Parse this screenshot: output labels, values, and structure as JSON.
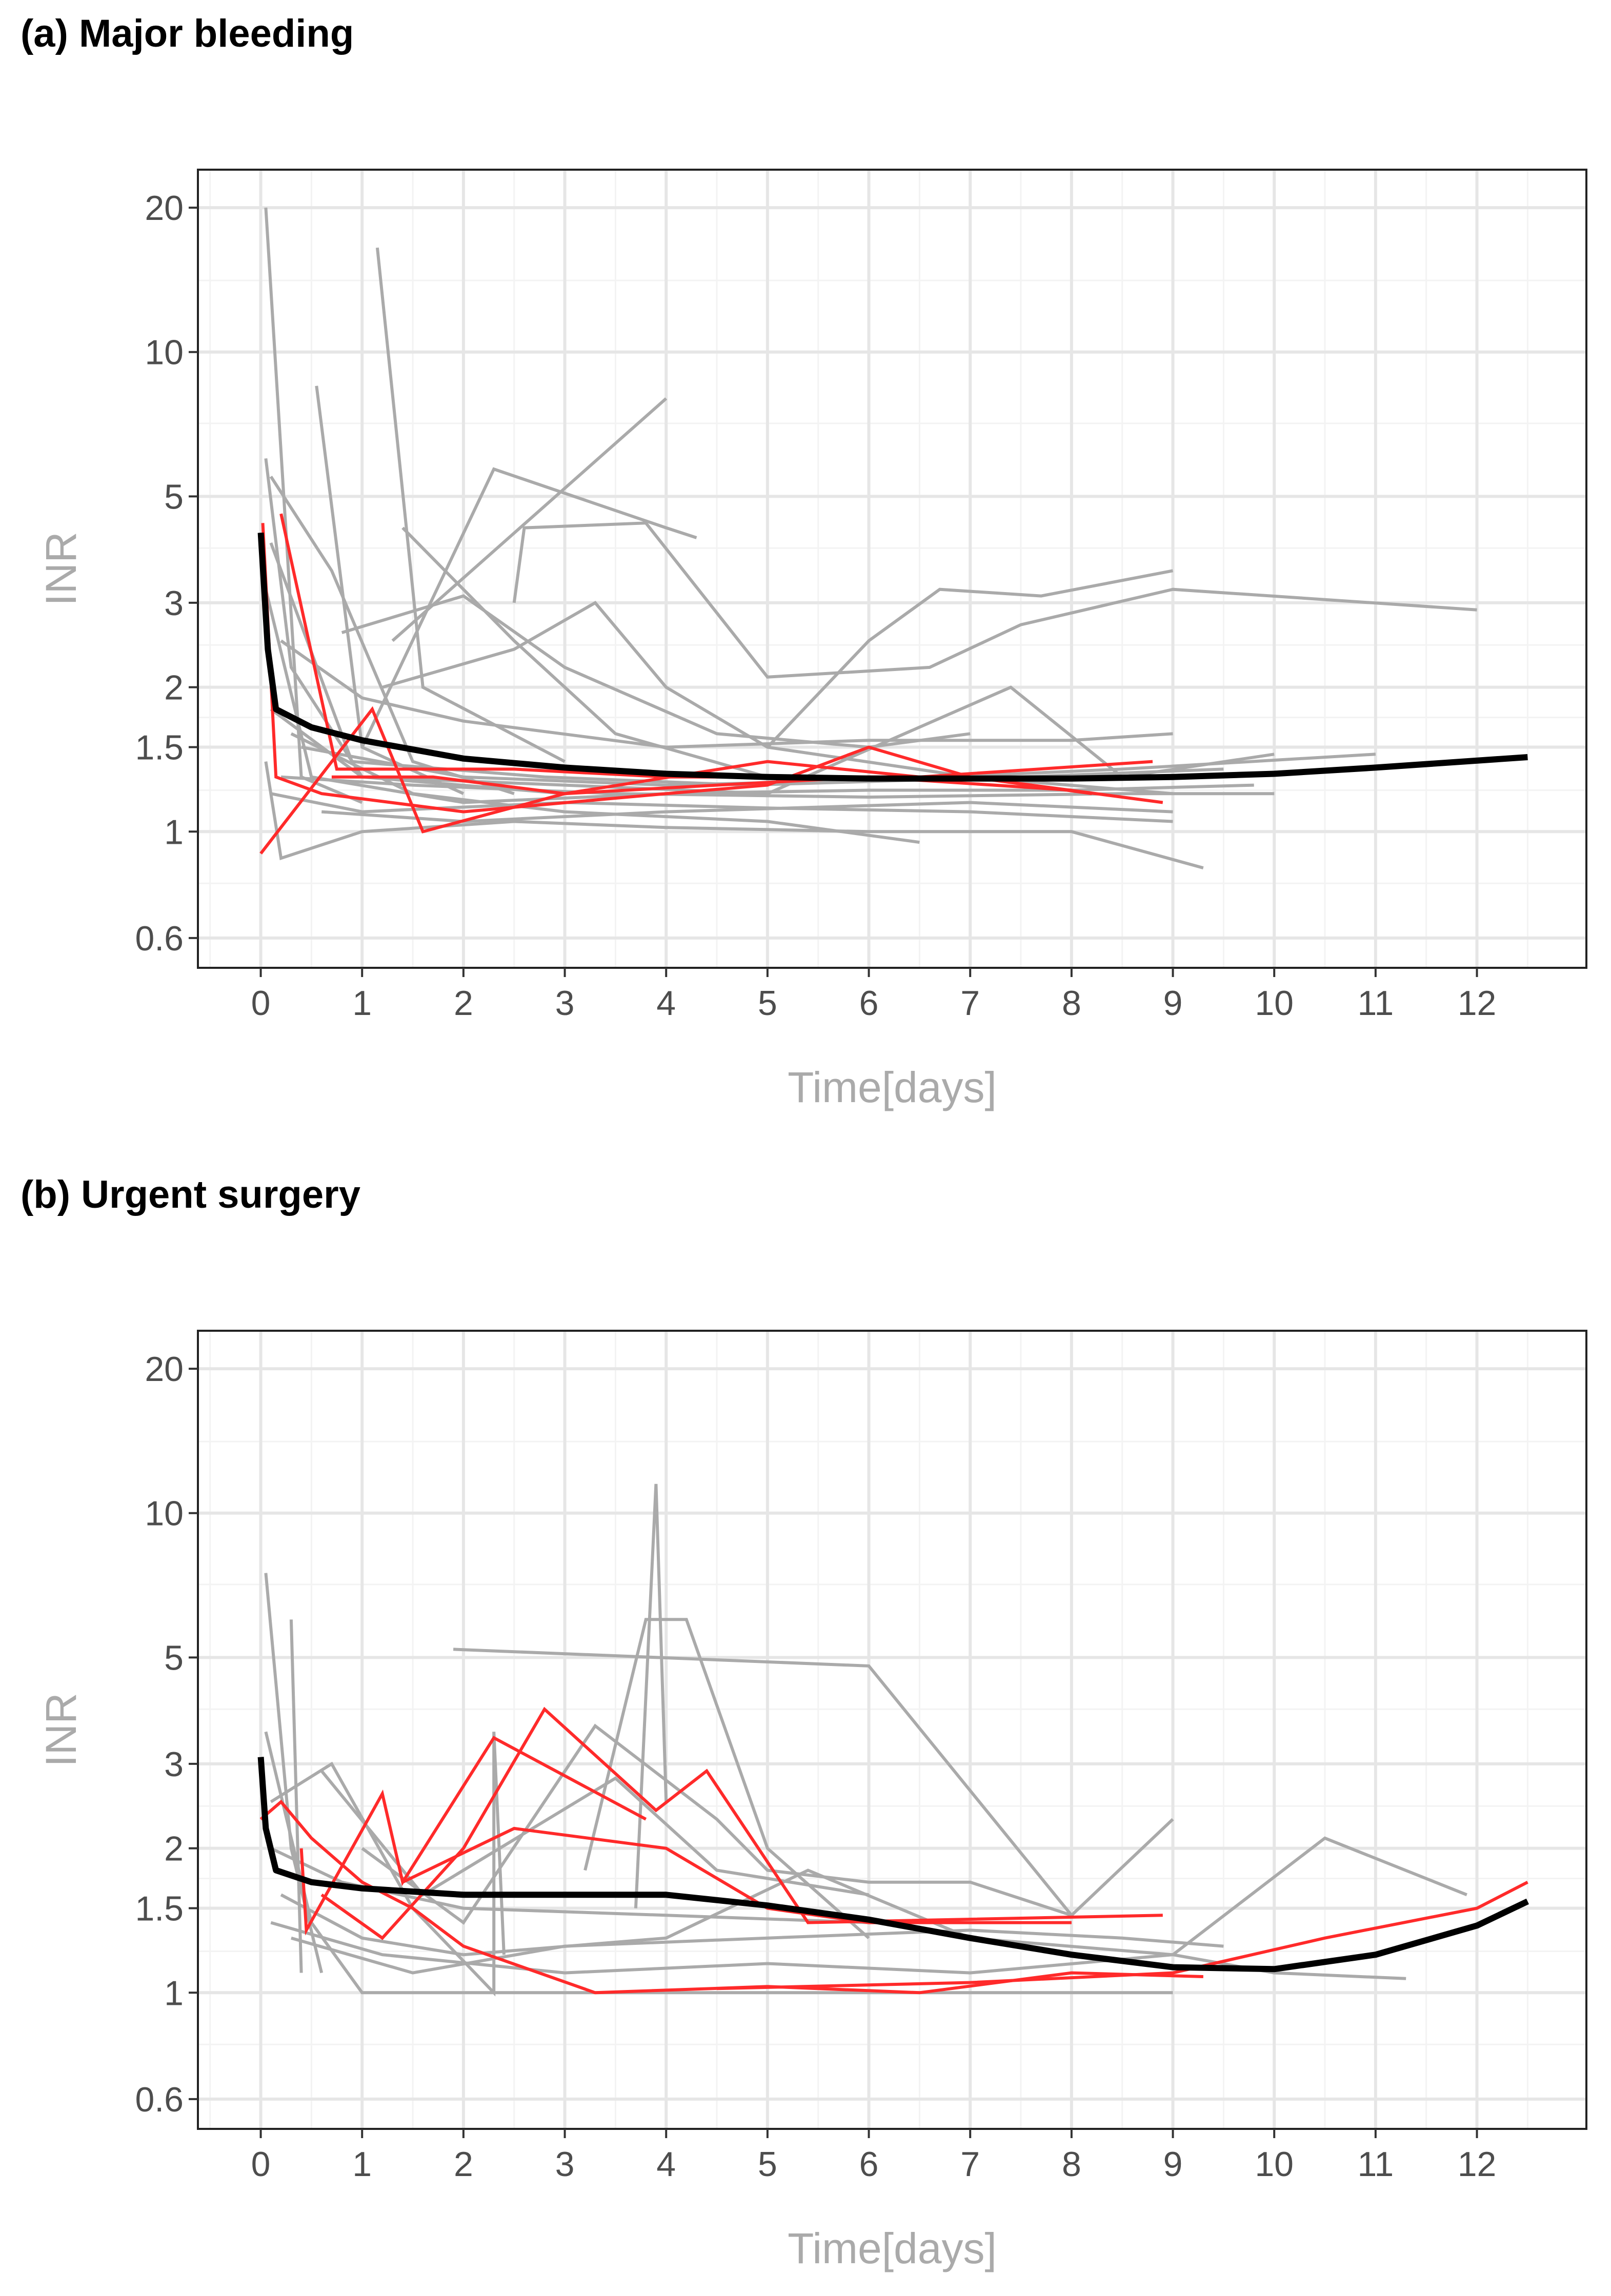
{
  "chart_data": [
    {
      "type": "line",
      "title": "(a) Major bleeding",
      "xlabel": "Time[days]",
      "ylabel": "INR",
      "yscale": "log",
      "xlim": [
        -0.62,
        13.08
      ],
      "ylim": [
        0.52,
        24
      ],
      "xticks": [
        0,
        1,
        2,
        3,
        4,
        5,
        6,
        7,
        8,
        9,
        10,
        11,
        12
      ],
      "yticks": [
        0.6,
        1,
        1.5,
        2,
        3,
        5,
        10,
        20
      ],
      "ytick_labels": [
        "0.6",
        "1",
        "1.5",
        "2",
        "3",
        "5",
        "10",
        "20"
      ],
      "grid": true,
      "colors": {
        "individual": "#aaaaaa",
        "highlighted": "#ff2a2a",
        "trend": "#000000"
      },
      "grey_series": [
        [
          [
            0.05,
            20
          ],
          [
            0.4,
            1.3
          ],
          [
            1,
            1.15
          ]
        ],
        [
          [
            1.15,
            16.5
          ],
          [
            1.6,
            2.0
          ],
          [
            3,
            1.4
          ]
        ],
        [
          [
            0.55,
            8.5
          ],
          [
            1.0,
            1.5
          ],
          [
            2,
            1.2
          ]
        ],
        [
          [
            0.05,
            6
          ],
          [
            0.3,
            2.2
          ],
          [
            1,
            1.3
          ],
          [
            3,
            1.2
          ]
        ],
        [
          [
            0.1,
            5.5
          ],
          [
            0.7,
            3.5
          ],
          [
            1.5,
            1.4
          ],
          [
            2.5,
            1.2
          ]
        ],
        [
          [
            1,
            1.5
          ],
          [
            2.3,
            5.7
          ],
          [
            4,
            4.3
          ],
          [
            4.3,
            4.1
          ]
        ],
        [
          [
            1.3,
            2.5
          ],
          [
            4,
            8
          ]
        ],
        [
          [
            1.4,
            4.3
          ],
          [
            2.5,
            2.5
          ],
          [
            3.5,
            1.6
          ],
          [
            5,
            1.3
          ]
        ],
        [
          [
            2.5,
            3.0
          ],
          [
            2.6,
            4.3
          ],
          [
            3.8,
            4.4
          ],
          [
            5,
            2.1
          ],
          [
            6.6,
            2.2
          ],
          [
            7.5,
            2.7
          ],
          [
            9,
            3.2
          ],
          [
            12,
            2.9
          ]
        ],
        [
          [
            5,
            1.5
          ],
          [
            6,
            2.5
          ],
          [
            6.7,
            3.2
          ],
          [
            7.7,
            3.1
          ],
          [
            9,
            3.5
          ]
        ],
        [
          [
            0.8,
            2.6
          ],
          [
            2,
            3.1
          ],
          [
            3,
            2.2
          ],
          [
            4.5,
            1.6
          ],
          [
            6,
            1.5
          ],
          [
            7,
            1.6
          ]
        ],
        [
          [
            1.2,
            2.0
          ],
          [
            2.5,
            2.4
          ],
          [
            3.3,
            3.0
          ],
          [
            4,
            2.0
          ],
          [
            5,
            1.5
          ],
          [
            7,
            1.3
          ],
          [
            9,
            1.2
          ]
        ],
        [
          [
            0.2,
            2.5
          ],
          [
            1,
            1.9
          ],
          [
            2,
            1.7
          ],
          [
            4,
            1.5
          ],
          [
            6,
            1.55
          ],
          [
            8,
            1.55
          ],
          [
            9,
            1.6
          ]
        ],
        [
          [
            0.1,
            1.8
          ],
          [
            1,
            1.3
          ],
          [
            3,
            1.25
          ],
          [
            5,
            1.2
          ],
          [
            7.4,
            2.0
          ],
          [
            8.5,
            1.3
          ],
          [
            10,
            1.45
          ]
        ],
        [
          [
            0.3,
            1.6
          ],
          [
            1.5,
            1.2
          ],
          [
            3,
            1.1
          ],
          [
            5,
            1.05
          ],
          [
            6.5,
            0.95
          ]
        ],
        [
          [
            0.05,
            1.4
          ],
          [
            0.2,
            0.88
          ],
          [
            1,
            1.0
          ],
          [
            2.5,
            1.05
          ],
          [
            4,
            1.02
          ],
          [
            6,
            1.0
          ],
          [
            8,
            1.0
          ],
          [
            9.3,
            0.84
          ]
        ],
        [
          [
            0.1,
            1.2
          ],
          [
            1,
            1.1
          ],
          [
            3,
            1.15
          ],
          [
            5,
            1.12
          ],
          [
            7,
            1.1
          ],
          [
            9,
            1.05
          ]
        ],
        [
          [
            0.2,
            1.3
          ],
          [
            1.5,
            1.25
          ],
          [
            3.5,
            1.2
          ],
          [
            6,
            1.18
          ],
          [
            8.5,
            1.2
          ],
          [
            10,
            1.2
          ]
        ],
        [
          [
            0.4,
            1.5
          ],
          [
            2,
            1.3
          ],
          [
            4,
            1.25
          ],
          [
            6,
            1.28
          ],
          [
            8.5,
            1.35
          ],
          [
            11,
            1.45
          ]
        ],
        [
          [
            0.6,
            1.1
          ],
          [
            2,
            1.05
          ],
          [
            4,
            1.1
          ],
          [
            7,
            1.15
          ],
          [
            9,
            1.1
          ]
        ],
        [
          [
            0.05,
            3.2
          ],
          [
            0.5,
            1.3
          ],
          [
            2,
            1.15
          ],
          [
            4,
            1.2
          ],
          [
            6,
            1.22
          ],
          [
            8,
            1.22
          ],
          [
            9.8,
            1.25
          ]
        ],
        [
          [
            0.1,
            4
          ],
          [
            0.9,
            1.4
          ],
          [
            2.8,
            1.3
          ],
          [
            4.8,
            1.25
          ],
          [
            7.5,
            1.3
          ],
          [
            9.5,
            1.35
          ]
        ]
      ],
      "red_series": [
        [
          [
            0.02,
            4.4
          ],
          [
            0.15,
            1.3
          ],
          [
            0.6,
            1.2
          ],
          [
            2.0,
            1.1
          ],
          [
            4,
            1.2
          ],
          [
            5,
            1.25
          ],
          [
            6,
            1.5
          ],
          [
            7,
            1.3
          ],
          [
            8.9,
            1.15
          ]
        ],
        [
          [
            0.2,
            4.6
          ],
          [
            0.75,
            1.35
          ],
          [
            1.6,
            1.35
          ],
          [
            2.5,
            1.35
          ],
          [
            4,
            1.3
          ],
          [
            5,
            1.3
          ],
          [
            6,
            1.3
          ],
          [
            8,
            1.22
          ]
        ],
        [
          [
            0.0,
            0.9
          ],
          [
            1.1,
            1.8
          ],
          [
            1.6,
            1.0
          ],
          [
            3,
            1.2
          ],
          [
            5,
            1.4
          ],
          [
            6.5,
            1.3
          ],
          [
            8.8,
            1.4
          ]
        ],
        [
          [
            0.7,
            1.3
          ],
          [
            1.7,
            1.3
          ],
          [
            3,
            1.2
          ],
          [
            4.5,
            1.25
          ],
          [
            6,
            1.3
          ],
          [
            7,
            1.3
          ],
          [
            8.2,
            1.2
          ]
        ]
      ],
      "trend": [
        [
          0,
          4.2
        ],
        [
          0.07,
          2.4
        ],
        [
          0.15,
          1.8
        ],
        [
          0.5,
          1.65
        ],
        [
          1,
          1.55
        ],
        [
          2,
          1.42
        ],
        [
          3,
          1.36
        ],
        [
          4,
          1.32
        ],
        [
          5,
          1.3
        ],
        [
          6,
          1.29
        ],
        [
          7,
          1.29
        ],
        [
          8,
          1.29
        ],
        [
          9,
          1.3
        ],
        [
          10,
          1.32
        ],
        [
          11,
          1.36
        ],
        [
          12.5,
          1.43
        ]
      ]
    },
    {
      "type": "line",
      "title": "(b) Urgent surgery",
      "xlabel": "Time[days]",
      "ylabel": "INR",
      "yscale": "log",
      "xlim": [
        -0.62,
        13.08
      ],
      "ylim": [
        0.52,
        24
      ],
      "xticks": [
        0,
        1,
        2,
        3,
        4,
        5,
        6,
        7,
        8,
        9,
        10,
        11,
        12
      ],
      "yticks": [
        0.6,
        1,
        1.5,
        2,
        3,
        5,
        10,
        20
      ],
      "ytick_labels": [
        "0.6",
        "1",
        "1.5",
        "2",
        "3",
        "5",
        "10",
        "20"
      ],
      "grid": true,
      "colors": {
        "individual": "#aaaaaa",
        "highlighted": "#ff2a2a",
        "trend": "#000000"
      },
      "grey_series": [
        [
          [
            1.9,
            5.2
          ],
          [
            6,
            4.8
          ],
          [
            8,
            1.45
          ],
          [
            9,
            2.3
          ]
        ],
        [
          [
            3.7,
            1.5
          ],
          [
            3.9,
            11.5
          ],
          [
            4,
            2.5
          ]
        ],
        [
          [
            3.2,
            1.8
          ],
          [
            3.8,
            6
          ],
          [
            4.2,
            6
          ],
          [
            5,
            2.0
          ],
          [
            6,
            1.3
          ]
        ],
        [
          [
            0.05,
            7.5
          ],
          [
            0.3,
            2.0
          ],
          [
            0.6,
            1.1
          ]
        ],
        [
          [
            0.3,
            6
          ],
          [
            0.4,
            1.1
          ]
        ],
        [
          [
            9,
            1.2
          ],
          [
            10.5,
            2.1
          ],
          [
            11.9,
            1.6
          ]
        ],
        [
          [
            0.05,
            3.5
          ],
          [
            0.5,
            1.4
          ],
          [
            1,
            1.0
          ],
          [
            3,
            1.0
          ],
          [
            6,
            1.0
          ],
          [
            9,
            1.0
          ]
        ],
        [
          [
            0.1,
            2.5
          ],
          [
            0.7,
            3.0
          ],
          [
            1.5,
            1.5
          ],
          [
            2.3,
            1.0
          ],
          [
            2.3,
            3.5
          ],
          [
            2.4,
            1.2
          ]
        ],
        [
          [
            1,
            2.0
          ],
          [
            2,
            1.4
          ],
          [
            3.3,
            3.6
          ],
          [
            4.5,
            2.3
          ],
          [
            5,
            1.8
          ],
          [
            6,
            1.7
          ],
          [
            7,
            1.7
          ],
          [
            8,
            1.45
          ]
        ],
        [
          [
            0.2,
            1.6
          ],
          [
            1,
            1.3
          ],
          [
            2,
            1.2
          ],
          [
            4,
            1.3
          ],
          [
            5.4,
            1.8
          ],
          [
            7,
            1.3
          ],
          [
            9,
            1.2
          ]
        ],
        [
          [
            0.1,
            1.4
          ],
          [
            1.2,
            1.2
          ],
          [
            3,
            1.1
          ],
          [
            5,
            1.15
          ],
          [
            7,
            1.1
          ],
          [
            9,
            1.2
          ],
          [
            10,
            1.1
          ],
          [
            11.3,
            1.07
          ]
        ],
        [
          [
            0.6,
            2.9
          ],
          [
            1.6,
            1.6
          ],
          [
            3.5,
            2.8
          ],
          [
            4.5,
            1.8
          ],
          [
            6,
            1.6
          ]
        ],
        [
          [
            0.3,
            1.3
          ],
          [
            1.5,
            1.1
          ],
          [
            3,
            1.25
          ],
          [
            5,
            1.3
          ],
          [
            7,
            1.35
          ],
          [
            8.5,
            1.3
          ],
          [
            9.5,
            1.25
          ]
        ],
        [
          [
            0.1,
            2.0
          ],
          [
            0.8,
            1.7
          ],
          [
            2,
            1.5
          ],
          [
            4,
            1.45
          ],
          [
            6,
            1.4
          ],
          [
            7.5,
            1.4
          ]
        ]
      ],
      "red_series": [
        [
          [
            0,
            2.3
          ],
          [
            0.2,
            2.5
          ],
          [
            0.5,
            2.1
          ],
          [
            1,
            1.7
          ],
          [
            1.5,
            1.5
          ],
          [
            2,
            1.25
          ],
          [
            3.3,
            1.0
          ],
          [
            5,
            1.03
          ],
          [
            6.5,
            1.0
          ],
          [
            8,
            1.1
          ],
          [
            9.3,
            1.08
          ]
        ],
        [
          [
            0.4,
            2.0
          ],
          [
            0.45,
            1.35
          ],
          [
            1.2,
            2.6
          ],
          [
            1.4,
            1.7
          ],
          [
            2.3,
            3.4
          ],
          [
            3.8,
            2.3
          ]
        ],
        [
          [
            0.6,
            1.6
          ],
          [
            1.2,
            1.3
          ],
          [
            2,
            2.0
          ],
          [
            2.8,
            3.9
          ],
          [
            3.9,
            2.4
          ],
          [
            4.4,
            2.9
          ],
          [
            5.4,
            1.4
          ],
          [
            8.9,
            1.45
          ]
        ],
        [
          [
            1.4,
            1.7
          ],
          [
            2.5,
            2.2
          ],
          [
            4,
            2.0
          ],
          [
            5,
            1.5
          ],
          [
            6,
            1.4
          ],
          [
            8,
            1.4
          ]
        ],
        [
          [
            4.5,
            1.02
          ],
          [
            7,
            1.05
          ],
          [
            9,
            1.1
          ],
          [
            10.5,
            1.3
          ],
          [
            12,
            1.5
          ],
          [
            12.5,
            1.7
          ]
        ]
      ],
      "trend": [
        [
          0,
          3.1
        ],
        [
          0.05,
          2.2
        ],
        [
          0.15,
          1.8
        ],
        [
          0.5,
          1.7
        ],
        [
          1,
          1.65
        ],
        [
          2,
          1.6
        ],
        [
          3,
          1.6
        ],
        [
          4,
          1.6
        ],
        [
          5,
          1.52
        ],
        [
          6,
          1.42
        ],
        [
          7,
          1.3
        ],
        [
          8,
          1.2
        ],
        [
          9,
          1.13
        ],
        [
          10,
          1.12
        ],
        [
          11,
          1.2
        ],
        [
          12,
          1.38
        ],
        [
          12.5,
          1.55
        ]
      ]
    }
  ]
}
